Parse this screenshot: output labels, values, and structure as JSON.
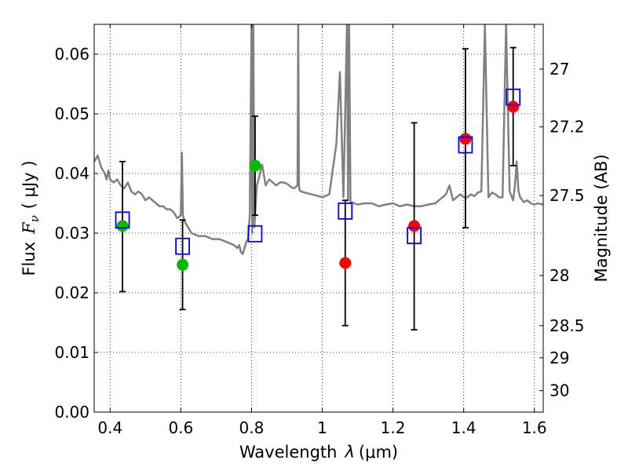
{
  "chart_data": {
    "type": "scatter",
    "xlabel_prefix": "Wavelength",
    "xlabel_symbol": "λ",
    "xlabel_unit": "(μm)",
    "ylabel_prefix": "Flux",
    "ylabel_symbol": "F",
    "ylabel_sub": "ν",
    "ylabel_unit": "( μJy )",
    "y2label": "Magnitude (AB)",
    "xlim": [
      0.355,
      1.625
    ],
    "ylim": [
      0.0,
      0.065
    ],
    "xticks": [
      0.4,
      0.6,
      0.8,
      1.0,
      1.2,
      1.4,
      1.6
    ],
    "xtick_labels": [
      "0.4",
      "0.6",
      "0.8",
      "1",
      "1.2",
      "1.4",
      "1.6"
    ],
    "yticks": [
      0.0,
      0.01,
      0.02,
      0.03,
      0.04,
      0.05,
      0.06
    ],
    "ytick_labels": [
      "0.00",
      "0.01",
      "0.02",
      "0.03",
      "0.04",
      "0.05",
      "0.06"
    ],
    "y2ticks": [
      {
        "label": "27",
        "flux": 0.0575
      },
      {
        "label": "27.2",
        "flux": 0.0478
      },
      {
        "label": "27.5",
        "flux": 0.0363
      },
      {
        "label": "28",
        "flux": 0.0229
      },
      {
        "label": "28.5",
        "flux": 0.0145
      },
      {
        "label": "29",
        "flux": 0.0091
      },
      {
        "label": "30",
        "flux": 0.0036
      }
    ],
    "grid": true,
    "colors": {
      "spectrum": "#808080",
      "model_box": "#0000ff",
      "green_points": "#00bb00",
      "red_points": "#ff0000",
      "errorbar": "#000000"
    },
    "spectrum": {
      "x": [
        0.355,
        0.365,
        0.375,
        0.385,
        0.39,
        0.395,
        0.4,
        0.41,
        0.42,
        0.43,
        0.44,
        0.45,
        0.46,
        0.47,
        0.48,
        0.49,
        0.5,
        0.51,
        0.52,
        0.53,
        0.54,
        0.55,
        0.56,
        0.57,
        0.58,
        0.59,
        0.6,
        0.603,
        0.606,
        0.61,
        0.62,
        0.63,
        0.65,
        0.67,
        0.69,
        0.71,
        0.73,
        0.75,
        0.76,
        0.765,
        0.77,
        0.775,
        0.78,
        0.785,
        0.79,
        0.795,
        0.8,
        0.802,
        0.805,
        0.808,
        0.81,
        0.815,
        0.82,
        0.83,
        0.84,
        0.85,
        0.86,
        0.87,
        0.88,
        0.89,
        0.9,
        0.91,
        0.92,
        0.93,
        0.932,
        0.934,
        0.936,
        0.94,
        0.95,
        0.97,
        0.99,
        1.0,
        1.02,
        1.04,
        1.05,
        1.06,
        1.07,
        1.073,
        1.076,
        1.08,
        1.085,
        1.09,
        1.1,
        1.12,
        1.14,
        1.16,
        1.18,
        1.2,
        1.22,
        1.24,
        1.26,
        1.28,
        1.3,
        1.32,
        1.34,
        1.35,
        1.36,
        1.37,
        1.38,
        1.39,
        1.4,
        1.41,
        1.42,
        1.43,
        1.44,
        1.45,
        1.46,
        1.47,
        1.48,
        1.49,
        1.5,
        1.51,
        1.52,
        1.53,
        1.54,
        1.545,
        1.55,
        1.555,
        1.56,
        1.57,
        1.58,
        1.59,
        1.6,
        1.61,
        1.625
      ],
      "y": [
        0.042,
        0.043,
        0.041,
        0.04,
        0.039,
        0.0405,
        0.039,
        0.0385,
        0.039,
        0.038,
        0.0375,
        0.0385,
        0.037,
        0.0365,
        0.037,
        0.0365,
        0.0355,
        0.036,
        0.0355,
        0.035,
        0.0345,
        0.0345,
        0.034,
        0.034,
        0.0335,
        0.0325,
        0.033,
        0.0435,
        0.033,
        0.032,
        0.031,
        0.03,
        0.0295,
        0.0295,
        0.029,
        0.029,
        0.0285,
        0.028,
        0.0275,
        0.028,
        0.0268,
        0.0265,
        0.0275,
        0.0285,
        0.029,
        0.033,
        0.065,
        0.03,
        0.065,
        0.031,
        0.033,
        0.038,
        0.039,
        0.0415,
        0.038,
        0.039,
        0.0385,
        0.038,
        0.0385,
        0.0385,
        0.0383,
        0.0378,
        0.0375,
        0.038,
        0.065,
        0.038,
        0.0372,
        0.037,
        0.0368,
        0.0365,
        0.0362,
        0.036,
        0.0365,
        0.045,
        0.057,
        0.036,
        0.065,
        0.0355,
        0.065,
        0.035,
        0.0352,
        0.035,
        0.0348,
        0.035,
        0.035,
        0.0345,
        0.0348,
        0.035,
        0.0345,
        0.0348,
        0.0345,
        0.0345,
        0.0348,
        0.035,
        0.036,
        0.0365,
        0.038,
        0.0355,
        0.036,
        0.0365,
        0.036,
        0.036,
        0.0365,
        0.0362,
        0.0368,
        0.037,
        0.065,
        0.036,
        0.0368,
        0.0365,
        0.036,
        0.036,
        0.065,
        0.037,
        0.0355,
        0.038,
        0.042,
        0.037,
        0.036,
        0.0352,
        0.0355,
        0.035,
        0.0348,
        0.035,
        0.0348
      ]
    },
    "model_boxes": {
      "x": [
        0.435,
        0.605,
        0.81,
        1.065,
        1.26,
        1.405,
        1.54
      ],
      "y": [
        0.0322,
        0.0278,
        0.0299,
        0.0337,
        0.0296,
        0.0448,
        0.0528
      ]
    },
    "observed": [
      {
        "x": 0.435,
        "y": 0.0312,
        "yerr_low": 0.0202,
        "yerr_high": 0.042,
        "color": "green"
      },
      {
        "x": 0.605,
        "y": 0.0247,
        "yerr_low": 0.0172,
        "yerr_high": 0.0322,
        "color": "green"
      },
      {
        "x": 0.81,
        "y": 0.0413,
        "yerr_low": 0.033,
        "yerr_high": 0.0496,
        "color": "green"
      },
      {
        "x": 1.065,
        "y": 0.025,
        "yerr_low": 0.0145,
        "yerr_high": 0.0355,
        "color": "red"
      },
      {
        "x": 1.26,
        "y": 0.0312,
        "yerr_low": 0.0138,
        "yerr_high": 0.0485,
        "color": "red"
      },
      {
        "x": 1.405,
        "y": 0.0458,
        "yerr_low": 0.0309,
        "yerr_high": 0.0609,
        "color": "red"
      },
      {
        "x": 1.54,
        "y": 0.0512,
        "yerr_low": 0.0413,
        "yerr_high": 0.0611,
        "color": "red"
      }
    ]
  }
}
